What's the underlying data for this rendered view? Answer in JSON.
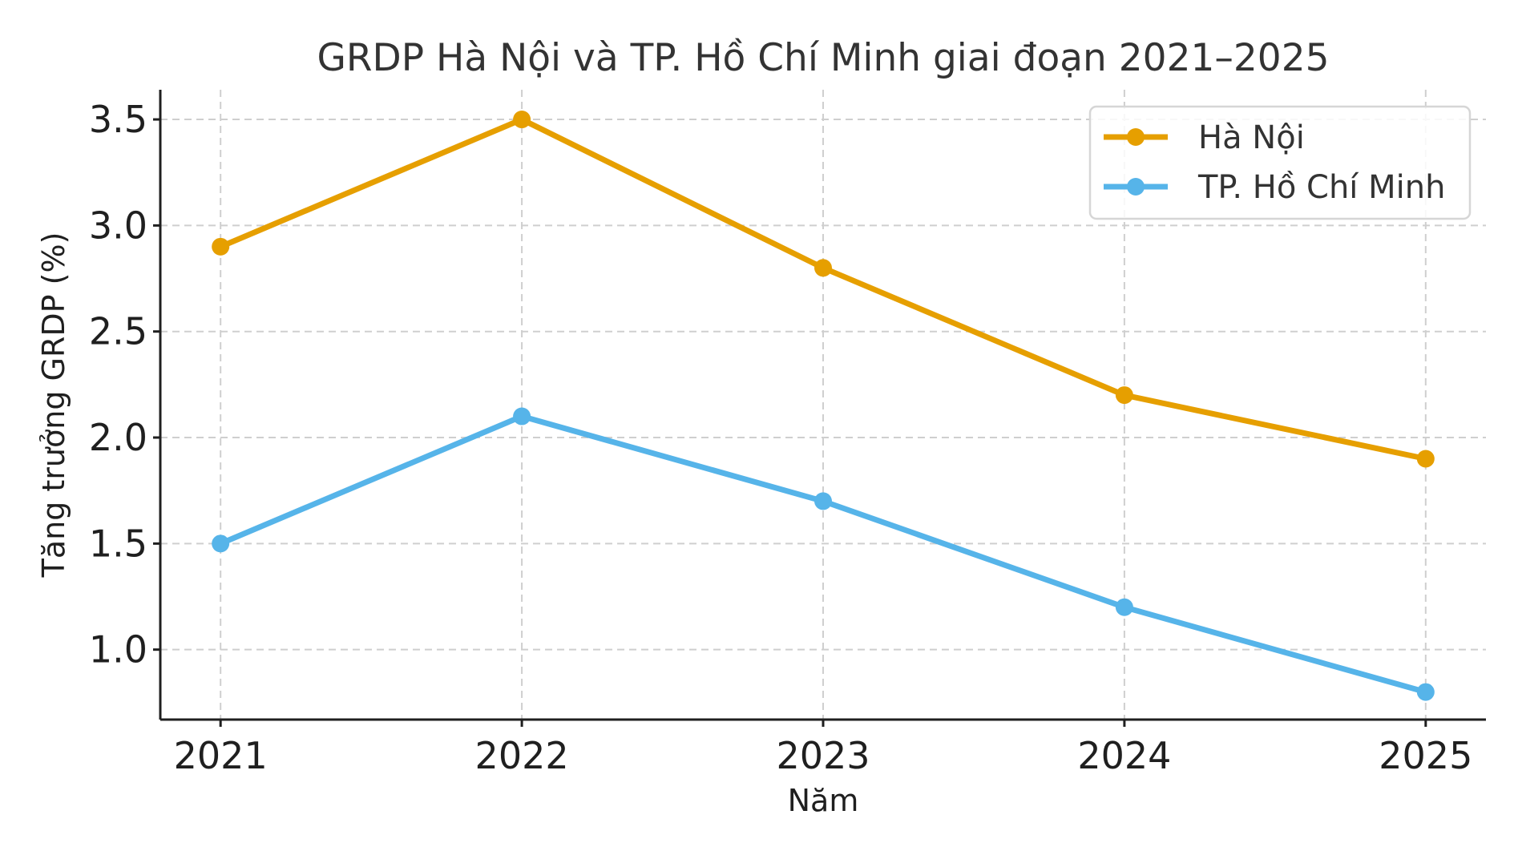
{
  "chart_data": {
    "type": "line",
    "title": "GRDP Hà Nội và TP. Hồ Chí Minh giai đoạn 2021–2025",
    "xlabel": "Năm",
    "ylabel": "Tăng trưởng GRDP (%)",
    "x": [
      2021,
      2022,
      2023,
      2024,
      2025
    ],
    "x_tick_labels": [
      "2021",
      "2022",
      "2023",
      "2024",
      "2025"
    ],
    "y_ticks": [
      1.0,
      1.5,
      2.0,
      2.5,
      3.0,
      3.5
    ],
    "y_tick_labels": [
      "1.0",
      "1.5",
      "2.0",
      "2.5",
      "3.0",
      "3.5"
    ],
    "ylim": [
      0.67,
      3.64
    ],
    "xlim": [
      2020.8,
      2025.2
    ],
    "grid": true,
    "legend_position": "top-right",
    "series": [
      {
        "name": "Hà Nội",
        "color": "#E69F00",
        "marker": "circle",
        "values": [
          2.9,
          3.5,
          2.8,
          2.2,
          1.9
        ]
      },
      {
        "name": "TP. Hồ Chí Minh",
        "color": "#56B4E9",
        "marker": "circle",
        "values": [
          1.5,
          2.1,
          1.7,
          1.2,
          0.8
        ]
      }
    ]
  }
}
